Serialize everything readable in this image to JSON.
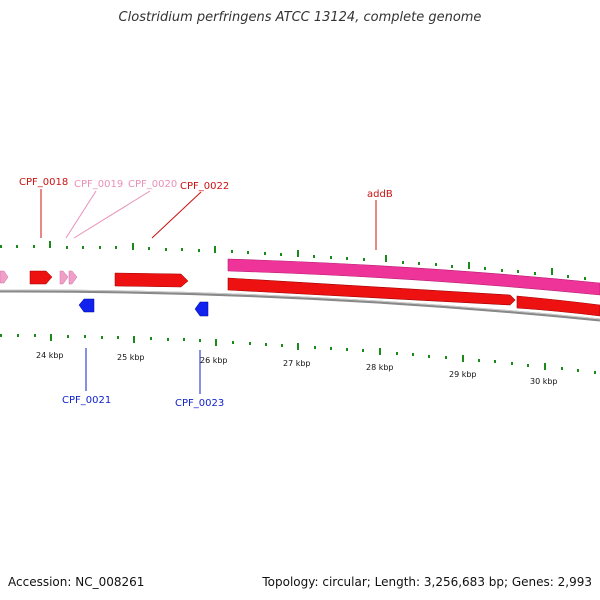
{
  "title": "Clostridium perfringens ATCC 13124, complete genome",
  "footer": {
    "accession": "Accession: NC_008261",
    "summary": "Topology: circular; Length: 3,256,683 bp; Genes: 2,993"
  },
  "colors": {
    "forward_gene": "#ee1111",
    "forward_gene_light": "#f0a0c8",
    "reverse_gene": "#1122ee",
    "mRNA_band": "#ee3399",
    "backbone": "#888888",
    "ticks": "#1a8a1a"
  },
  "scale_ticks": [
    {
      "label": "24 kbp"
    },
    {
      "label": "25 kbp"
    },
    {
      "label": "26 kbp"
    },
    {
      "label": "27 kbp"
    },
    {
      "label": "28 kbp"
    },
    {
      "label": "29 kbp"
    },
    {
      "label": "30 kbp"
    }
  ],
  "gene_labels": {
    "cpf_0018": "CPF_0018",
    "cpf_0019": "CPF_0019",
    "cpf_0020": "CPF_0020",
    "cpf_0022": "CPF_0022",
    "addB": "addB",
    "cpf_0021": "CPF_0021",
    "cpf_0023": "CPF_0023"
  }
}
